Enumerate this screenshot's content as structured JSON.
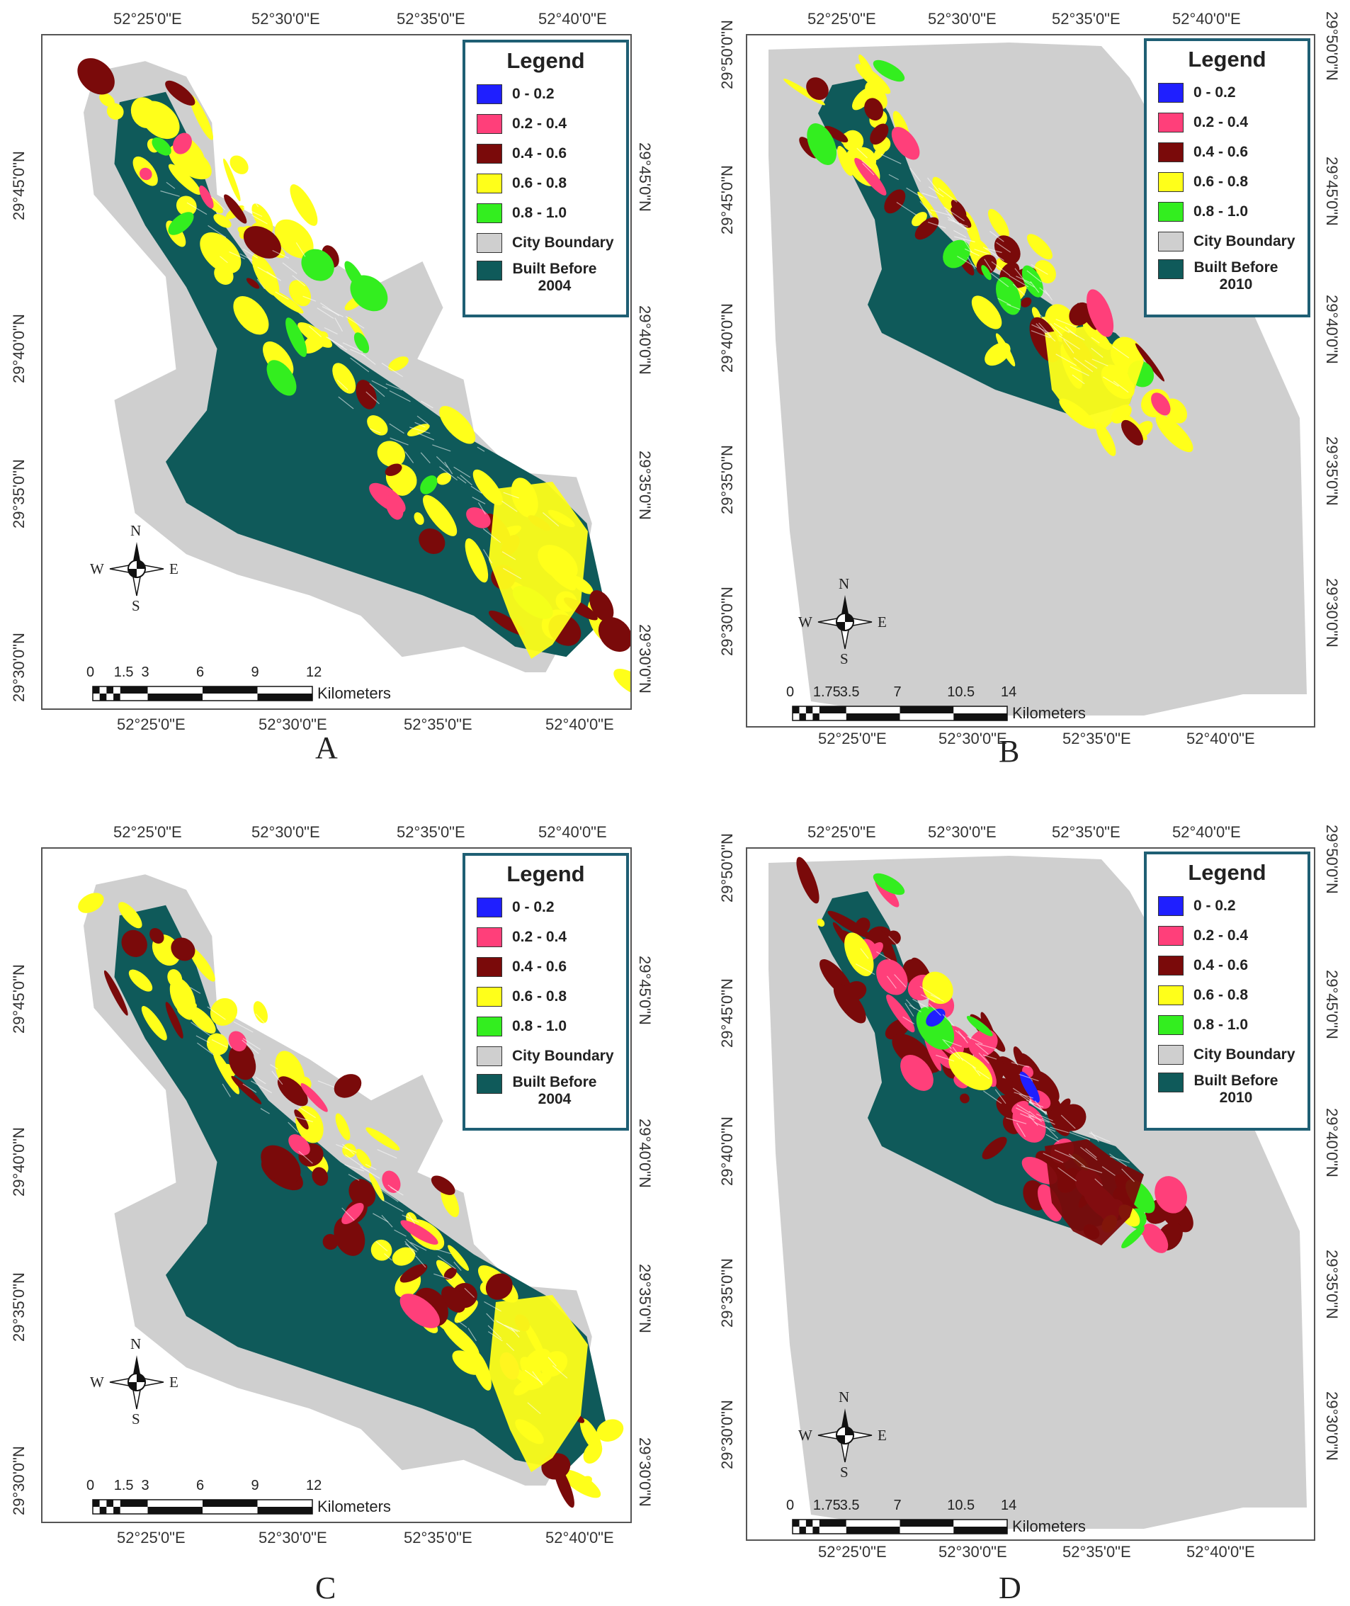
{
  "colors": {
    "class_0_02": "#1f1fff",
    "class_02_04": "#ff3f7a",
    "class_04_06": "#7a0a0a",
    "class_06_08": "#ffff1a",
    "class_08_10": "#33ee1f",
    "city_boundary": "#cfcfcf",
    "built_before": "#0f5a5a"
  },
  "panels": [
    {
      "id": "A",
      "letter": "A",
      "legend": {
        "title": "Legend",
        "items": [
          "0 - 0.2",
          "0.2 - 0.4",
          "0.4 - 0.6",
          "0.6 - 0.8",
          "0.8 - 1.0",
          "City Boundary"
        ],
        "built_line1": "Built Before",
        "built_line2": "2004"
      },
      "x_labels": [
        "52°25'0\"E",
        "52°30'0\"E",
        "52°35'0\"E",
        "52°40'0\"E"
      ],
      "y_labels": [
        "29°45'0\"N",
        "29°40'0\"N",
        "29°35'0\"N",
        "29°30'0\"N"
      ],
      "scale": {
        "ticks": [
          "0",
          "1.5",
          "3",
          "6",
          "9",
          "12"
        ],
        "unit": "Kilometers"
      },
      "compass": {
        "n": "N",
        "s": "S",
        "e": "E",
        "w": "W"
      }
    },
    {
      "id": "B",
      "letter": "B",
      "legend": {
        "title": "Legend",
        "items": [
          "0 - 0.2",
          "0.2 - 0.4",
          "0.4 - 0.6",
          "0.6 - 0.8",
          "0.8 - 1.0",
          "City Boundary"
        ],
        "built_line1": "Built Before",
        "built_line2": "2010"
      },
      "x_labels": [
        "52°25'0\"E",
        "52°30'0\"E",
        "52°35'0\"E",
        "52°40'0\"E"
      ],
      "y_labels": [
        "29°50'0\"N",
        "29°45'0\"N",
        "29°40'0\"N",
        "29°35'0\"N",
        "29°30'0\"N"
      ],
      "scale": {
        "ticks": [
          "0",
          "1.75",
          "3.5",
          "7",
          "10.5",
          "14"
        ],
        "unit": "Kilometers"
      },
      "compass": {
        "n": "N",
        "s": "S",
        "e": "E",
        "w": "W"
      }
    },
    {
      "id": "C",
      "letter": "C",
      "legend": {
        "title": "Legend",
        "items": [
          "0 - 0.2",
          "0.2 - 0.4",
          "0.4 - 0.6",
          "0.6 - 0.8",
          "0.8 - 1.0",
          "City Boundary"
        ],
        "built_line1": "Built Before",
        "built_line2": "2004"
      },
      "x_labels": [
        "52°25'0\"E",
        "52°30'0\"E",
        "52°35'0\"E",
        "52°40'0\"E"
      ],
      "y_labels": [
        "29°45'0\"N",
        "29°40'0\"N",
        "29°35'0\"N",
        "29°30'0\"N"
      ],
      "scale": {
        "ticks": [
          "0",
          "1.5",
          "3",
          "6",
          "9",
          "12"
        ],
        "unit": "Kilometers"
      },
      "compass": {
        "n": "N",
        "s": "S",
        "e": "E",
        "w": "W"
      }
    },
    {
      "id": "D",
      "letter": "D",
      "legend": {
        "title": "Legend",
        "items": [
          "0 - 0.2",
          "0.2 - 0.4",
          "0.4 - 0.6",
          "0.6 - 0.8",
          "0.8 - 1.0",
          "City Boundary"
        ],
        "built_line1": "Built Before",
        "built_line2": "2010"
      },
      "x_labels": [
        "52°25'0\"E",
        "52°30'0\"E",
        "52°35'0\"E",
        "52°40'0\"E"
      ],
      "y_labels": [
        "29°50'0\"N",
        "29°45'0\"N",
        "29°40'0\"N",
        "29°35'0\"N",
        "29°30'0\"N"
      ],
      "scale": {
        "ticks": [
          "0",
          "1.75",
          "3.5",
          "7",
          "10.5",
          "14"
        ],
        "unit": "Kilometers"
      },
      "compass": {
        "n": "N",
        "s": "S",
        "e": "E",
        "w": "W"
      }
    }
  ]
}
